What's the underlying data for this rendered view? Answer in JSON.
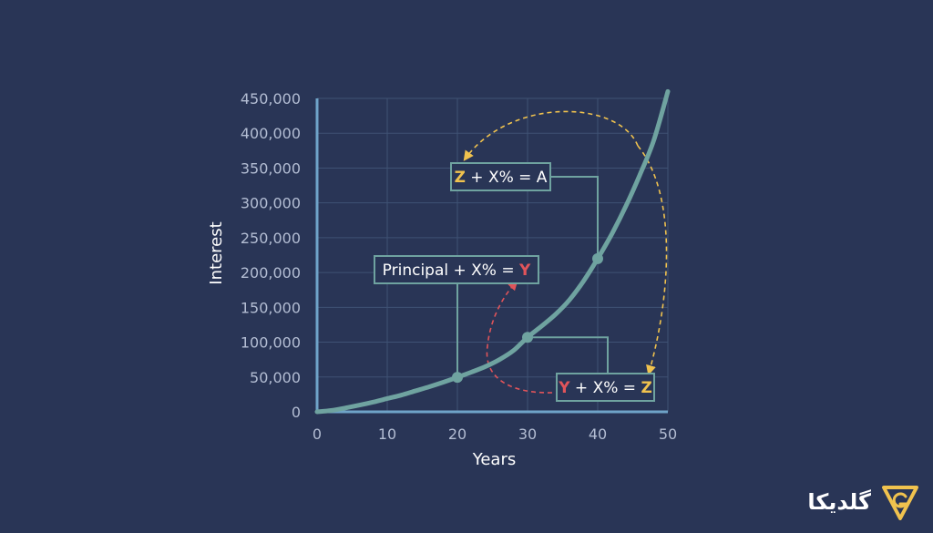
{
  "chart_data": {
    "type": "line",
    "xlabel": "Years",
    "ylabel": "Interest",
    "xlim": [
      0,
      50
    ],
    "ylim": [
      0,
      450000
    ],
    "x_ticks": [
      0,
      10,
      20,
      30,
      40,
      50
    ],
    "y_ticks": [
      0,
      50000,
      100000,
      150000,
      200000,
      250000,
      300000,
      350000,
      400000,
      450000
    ],
    "x_tick_labels": [
      "0",
      "10",
      "20",
      "30",
      "40",
      "50"
    ],
    "y_tick_labels": [
      "0",
      "50,000",
      "100,000",
      "150,000",
      "200,000",
      "250,000",
      "300,000",
      "350,000",
      "400,000",
      "450,000"
    ],
    "grid": true,
    "series": [
      {
        "color": "#6fa3a0",
        "x": [
          0,
          2,
          4,
          6,
          8,
          10,
          12,
          14,
          16,
          18,
          20,
          22,
          24,
          26,
          28,
          30,
          32,
          34,
          36,
          38,
          40,
          42,
          44,
          46,
          48,
          50
        ],
        "values": [
          0,
          2000,
          5500,
          9500,
          14000,
          19000,
          24000,
          30000,
          36000,
          42500,
          49500,
          57000,
          65000,
          75000,
          88000,
          107000,
          123000,
          140000,
          161000,
          188000,
          220000,
          255000,
          295000,
          340000,
          390000,
          460000
        ]
      }
    ],
    "markers": [
      {
        "x": 20,
        "y": 49500
      },
      {
        "x": 30,
        "y": 107000
      },
      {
        "x": 40,
        "y": 220000
      }
    ],
    "annotations": [
      {
        "parts": [
          {
            "text": "Principal + X% = ",
            "color": "#ffffff"
          },
          {
            "text": "Y",
            "color": "#e0545a"
          }
        ]
      },
      {
        "parts": [
          {
            "text": "Y",
            "color": "#e0545a"
          },
          {
            "text": " + X% = ",
            "color": "#ffffff"
          },
          {
            "text": "Z",
            "color": "#f0c24e"
          }
        ]
      },
      {
        "parts": [
          {
            "text": "Z",
            "color": "#f0c24e"
          },
          {
            "text": " + X% = A",
            "color": "#ffffff"
          }
        ]
      }
    ],
    "colors": {
      "background": "#293556",
      "axis": "#6fa3c8",
      "grid": "#3f5274",
      "line": "#6fa3a0",
      "annotation_border": "#6fa3a0",
      "red_arrow": "#e0545a",
      "yellow_arrow": "#f0c24e"
    }
  },
  "logo": {
    "text": "گلدیکا",
    "icon": "goldika-logo-icon",
    "color": "#f0c24e"
  }
}
